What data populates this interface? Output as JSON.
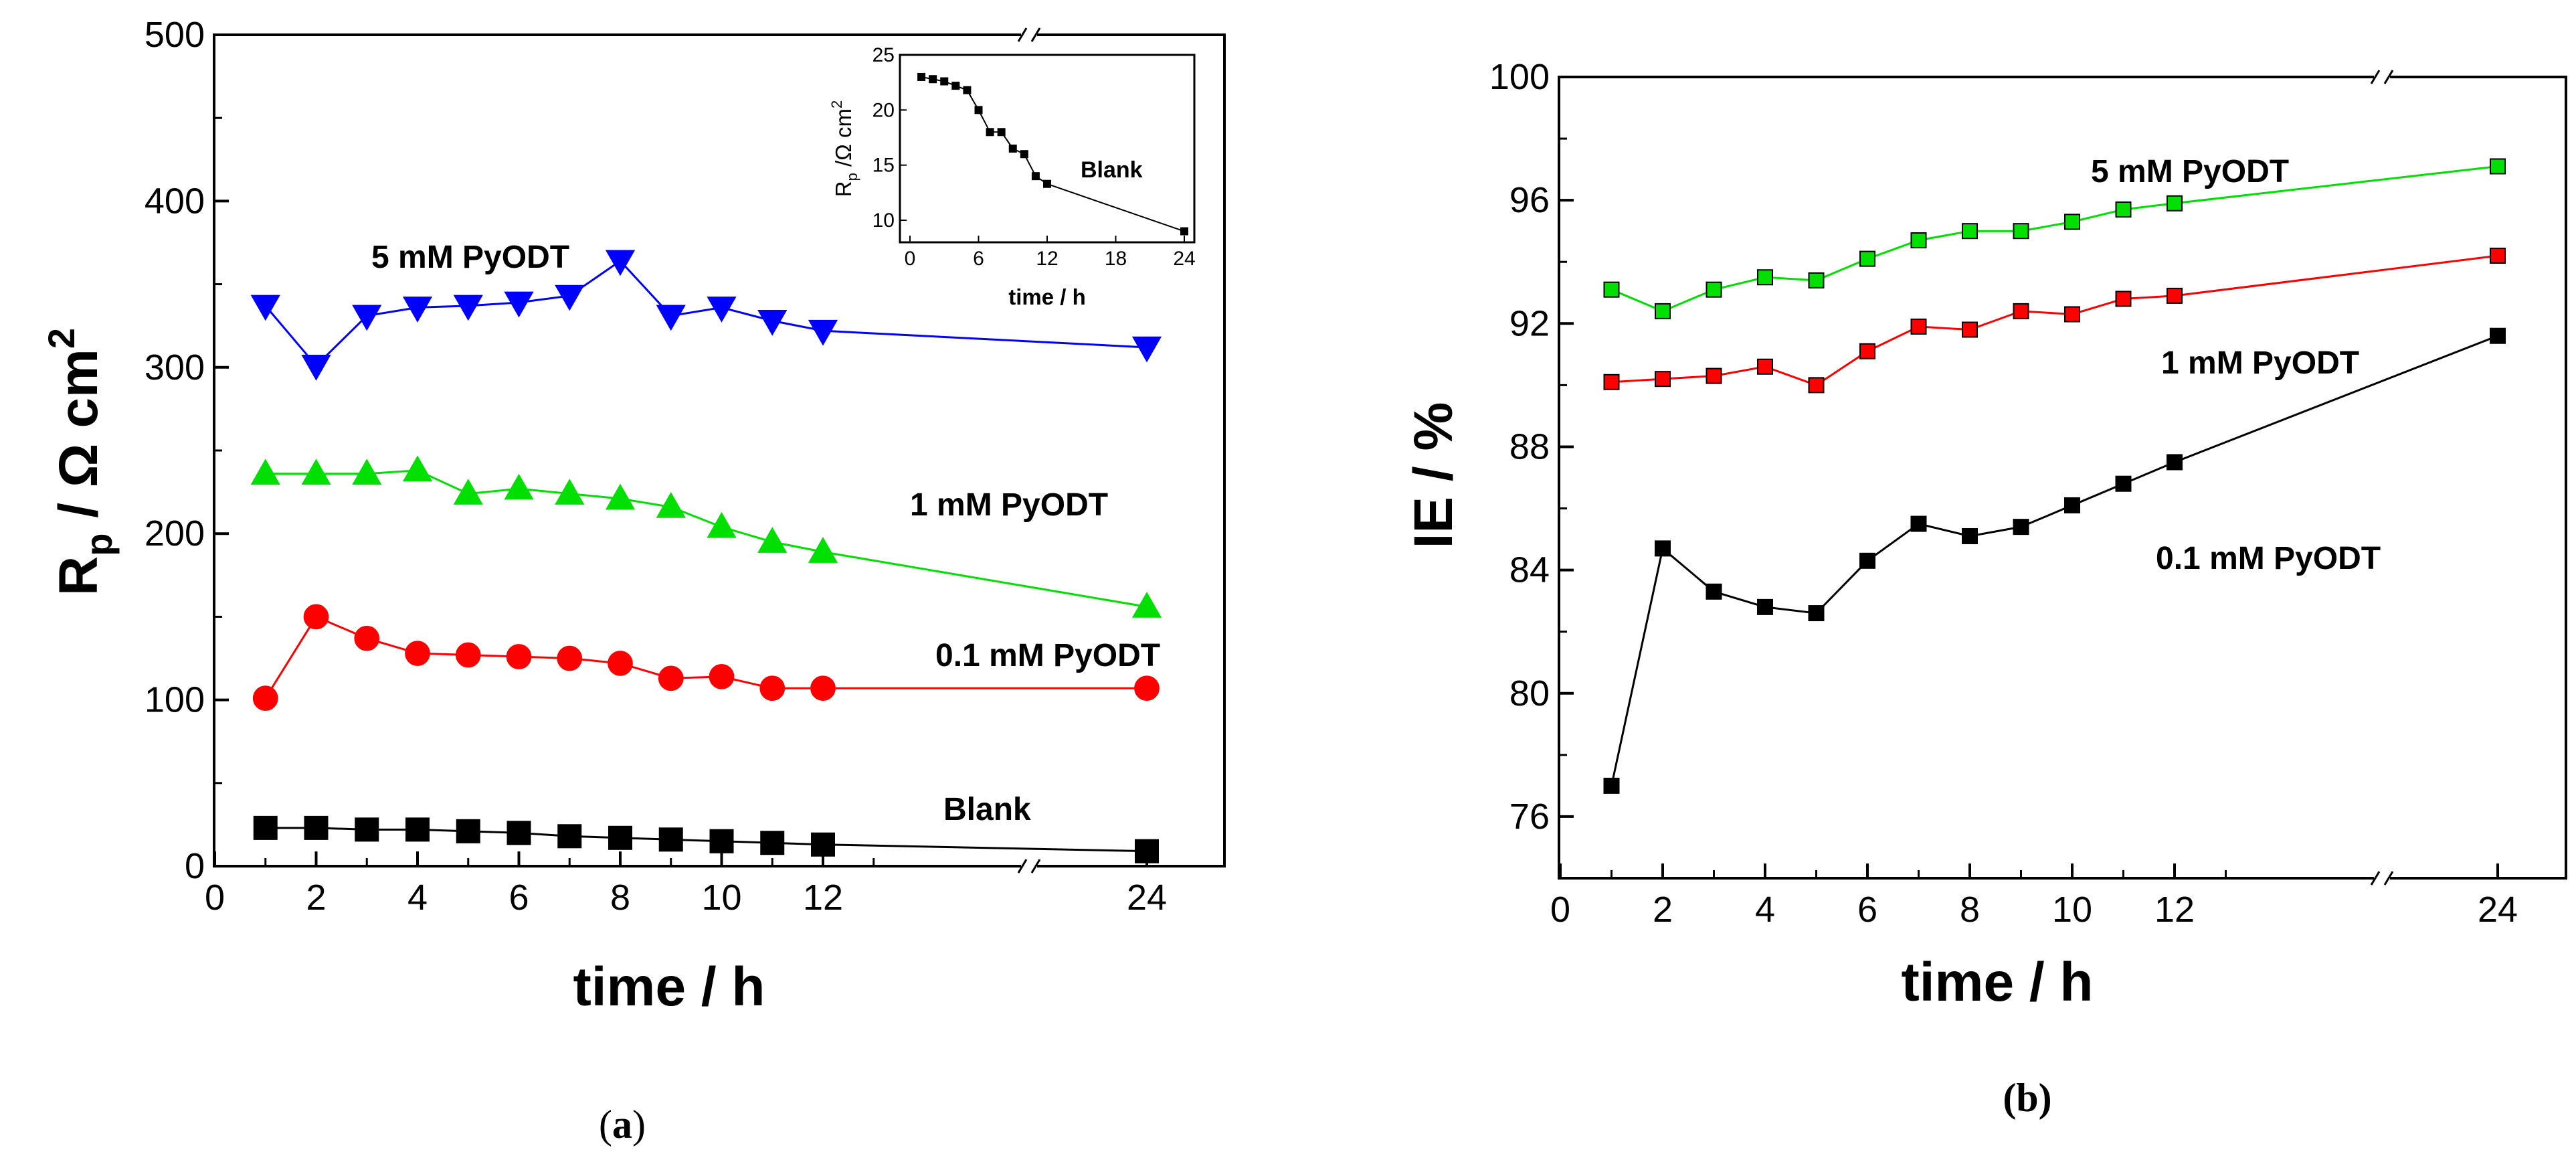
{
  "chart_data": [
    {
      "type": "line",
      "panel_label": "(a)",
      "xlabel": "time / h",
      "ylabel_main": "R",
      "ylabel_sub": "p",
      "ylabel_rest": " / Ω cm",
      "ylabel_sup": "2",
      "ylim": [
        0,
        500
      ],
      "yticks": [
        "0",
        "100",
        "200",
        "300",
        "400",
        "500"
      ],
      "xticks": [
        "0",
        "2",
        "4",
        "6",
        "8",
        "10",
        "12",
        "24"
      ],
      "x": [
        1,
        2,
        3,
        4,
        5,
        6,
        7,
        8,
        9,
        10,
        11,
        12,
        24
      ],
      "axis_break": "between 12 and 24",
      "series": [
        {
          "name": "5 mM PyODT",
          "color": "#0000ff",
          "marker": "triangle-down",
          "values": [
            337,
            301,
            331,
            336,
            337,
            339,
            343,
            364,
            331,
            336,
            328,
            322,
            312
          ]
        },
        {
          "name": "1 mM PyODT",
          "color": "#00e000",
          "marker": "triangle-up",
          "values": [
            236,
            236,
            236,
            238,
            224,
            227,
            224,
            221,
            216,
            204,
            195,
            189,
            156
          ]
        },
        {
          "name": "0.1 mM PyODT",
          "color": "#ff0000",
          "marker": "circle",
          "values": [
            101,
            150,
            137,
            128,
            127,
            126,
            125,
            122,
            113,
            114,
            107,
            107,
            107
          ]
        },
        {
          "name": "Blank",
          "color": "#000000",
          "marker": "square",
          "values": [
            23,
            23,
            22,
            22,
            21,
            20,
            18,
            17,
            16,
            15,
            14,
            13,
            9
          ]
        }
      ],
      "inset": {
        "xlabel": "time / h",
        "ylabel_main": "R",
        "ylabel_sub": "p",
        "ylabel_rest": " /Ω cm",
        "ylabel_sup": "2",
        "annotation": "Blank",
        "xlim": [
          0,
          24
        ],
        "ylim": [
          8,
          25
        ],
        "xticks": [
          "0",
          "6",
          "12",
          "18",
          "24"
        ],
        "yticks": [
          "10",
          "15",
          "20",
          "25"
        ],
        "x": [
          1,
          2,
          3,
          4,
          5,
          6,
          7,
          8,
          9,
          10,
          11,
          12,
          24
        ],
        "values": [
          23,
          22.8,
          22.6,
          22.2,
          21.8,
          20,
          18,
          18,
          16.5,
          16,
          14,
          13.3,
          9
        ]
      }
    },
    {
      "type": "line",
      "panel_label": "(b)",
      "xlabel": "time / h",
      "ylabel": "IE / %",
      "ylim": [
        74,
        100
      ],
      "yticks": [
        "76",
        "80",
        "84",
        "88",
        "92",
        "96",
        "100"
      ],
      "xticks": [
        "0",
        "2",
        "4",
        "6",
        "8",
        "10",
        "12",
        "24"
      ],
      "x": [
        1,
        2,
        3,
        4,
        5,
        6,
        7,
        8,
        9,
        10,
        11,
        12,
        24
      ],
      "axis_break": "between 12 and 24",
      "series": [
        {
          "name": "5 mM PyODT",
          "color": "#00e000",
          "marker": "square",
          "values": [
            93.1,
            92.4,
            93.1,
            93.5,
            93.4,
            94.1,
            94.7,
            95.0,
            95.0,
            95.3,
            95.7,
            95.9,
            97.1
          ]
        },
        {
          "name": "1 mM PyODT",
          "color": "#ff0000",
          "marker": "square",
          "values": [
            90.1,
            90.2,
            90.3,
            90.6,
            90.0,
            91.1,
            91.9,
            91.8,
            92.4,
            92.3,
            92.8,
            92.9,
            94.2
          ]
        },
        {
          "name": "0.1 mM PyODT",
          "color": "#000000",
          "marker": "square",
          "values": [
            77.0,
            84.7,
            83.3,
            82.8,
            82.6,
            84.3,
            85.5,
            85.1,
            85.4,
            86.1,
            86.8,
            87.5,
            91.6
          ]
        }
      ]
    }
  ]
}
